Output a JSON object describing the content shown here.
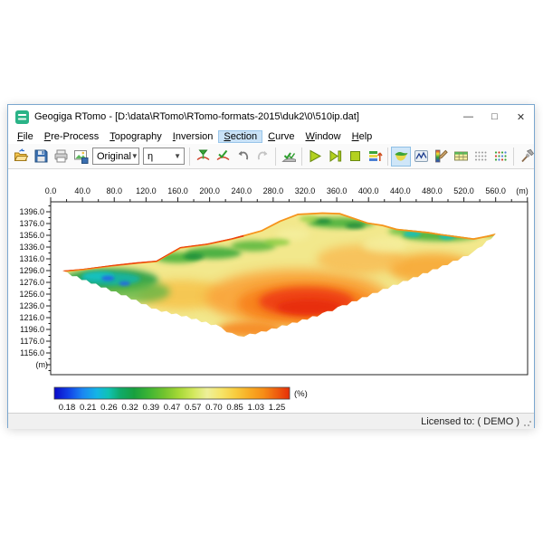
{
  "window": {
    "title": "Geogiga RTomo - [D:\\data\\RTomo\\RTomo-formats-2015\\duk2\\0\\510ip.dat]",
    "minimize_glyph": "—",
    "maximize_glyph": "□",
    "close_glyph": "✕"
  },
  "menu": {
    "items": [
      {
        "label": "File",
        "active": false
      },
      {
        "label": "Pre-Process",
        "active": false
      },
      {
        "label": "Topography",
        "active": false
      },
      {
        "label": "Inversion",
        "active": false
      },
      {
        "label": "Section",
        "active": true
      },
      {
        "label": "Curve",
        "active": false
      },
      {
        "label": "Window",
        "active": false
      },
      {
        "label": "Help",
        "active": false
      }
    ]
  },
  "toolbar": {
    "dropdowns": [
      {
        "value": "Original"
      },
      {
        "value": "η"
      }
    ],
    "icons": [
      "open-file",
      "save",
      "print",
      "export-image",
      "pick-funnel",
      "pick-check",
      "undo",
      "redo",
      "apply-picks",
      "run",
      "step",
      "stop",
      "layers-arrow",
      "section-view",
      "curve-window",
      "color-scale",
      "grid-table",
      "grid-dots",
      "grid-dots-color",
      "tools-hammer"
    ],
    "active_icon": "section-view"
  },
  "statusbar": {
    "license": "Licensed to: ( DEMO )"
  },
  "chart_data": {
    "type": "heatmap",
    "title": "",
    "x_axis": {
      "unit": "(m)",
      "tick_min": 0,
      "tick_max": 600,
      "tick_step": 20,
      "label_step": 40,
      "label_max": 560
    },
    "y_axis": {
      "unit": "(m)",
      "ref": 1396,
      "tick_step": 10,
      "label_step": 20,
      "label_min": 1156,
      "label_max": 1396,
      "labels": [
        1396.0,
        1376.0,
        1356.0,
        1336.0,
        1316.0,
        1296.0,
        1276.0,
        1256.0,
        1236.0,
        1216.0,
        1196.0,
        1176.0,
        1156.0
      ]
    },
    "colorbar": {
      "unit": "(%)",
      "labels": [
        "0.18",
        "0.21",
        "0.26",
        "0.32",
        "0.39",
        "0.47",
        "0.57",
        "0.70",
        "0.85",
        "1.03",
        "1.25"
      ],
      "gradient": [
        [
          0,
          "#0a0ac8"
        ],
        [
          6,
          "#1140e6"
        ],
        [
          12,
          "#1b86f2"
        ],
        [
          18,
          "#14b4e6"
        ],
        [
          23,
          "#10c2b4"
        ],
        [
          28,
          "#10aa6a"
        ],
        [
          34,
          "#18a03e"
        ],
        [
          40,
          "#3cb434"
        ],
        [
          47,
          "#74c42e"
        ],
        [
          53,
          "#a6d836"
        ],
        [
          59,
          "#d2e85c"
        ],
        [
          65,
          "#eef09a"
        ],
        [
          71,
          "#f6e468"
        ],
        [
          77,
          "#f8cc3e"
        ],
        [
          83,
          "#f8ac24"
        ],
        [
          89,
          "#f68c16"
        ],
        [
          95,
          "#ee5a0e"
        ],
        [
          100,
          "#e62e08"
        ]
      ]
    },
    "section": {
      "base_color": "#f2e88c",
      "outline_top": [
        [
          15,
          1296
        ],
        [
          40,
          1299
        ],
        [
          74,
          1305
        ],
        [
          108,
          1310
        ],
        [
          133,
          1313
        ],
        [
          163,
          1336
        ],
        [
          197,
          1342
        ],
        [
          228,
          1351
        ],
        [
          265,
          1365
        ],
        [
          288,
          1381
        ],
        [
          311,
          1393
        ],
        [
          342,
          1395
        ],
        [
          364,
          1394
        ],
        [
          399,
          1378
        ],
        [
          418,
          1374
        ],
        [
          436,
          1367
        ],
        [
          475,
          1362
        ],
        [
          493,
          1358
        ],
        [
          532,
          1351
        ],
        [
          551,
          1356
        ],
        [
          560,
          1359
        ]
      ],
      "outline_bottom": [
        [
          560,
          1359
        ],
        [
          532,
          1328
        ],
        [
          493,
          1305
        ],
        [
          456,
          1285
        ],
        [
          418,
          1265
        ],
        [
          379,
          1244
        ],
        [
          361,
          1234
        ],
        [
          342,
          1224
        ],
        [
          304,
          1208
        ],
        [
          265,
          1193
        ],
        [
          236,
          1185
        ],
        [
          228,
          1190
        ],
        [
          208,
          1204
        ],
        [
          171,
          1219
        ],
        [
          133,
          1231
        ],
        [
          95,
          1254
        ],
        [
          57,
          1274
        ],
        [
          15,
          1296
        ]
      ],
      "features": [
        [
          165,
          1255,
          55,
          25,
          "#f6c44e",
          0.9,
          5
        ],
        [
          310,
          1250,
          115,
          48,
          "#f9a63c",
          0.95,
          6
        ],
        [
          480,
          1300,
          55,
          26,
          "#f8a432",
          0.85,
          5
        ],
        [
          390,
          1315,
          55,
          25,
          "#f9b44a",
          0.7,
          5
        ],
        [
          320,
          1240,
          85,
          35,
          "#f7821e",
          0.95,
          5
        ],
        [
          250,
          1196,
          40,
          14,
          "#f7821e",
          0.85,
          4
        ],
        [
          322,
          1243,
          60,
          24,
          "#ee4012",
          0.95,
          4
        ],
        [
          325,
          1234,
          40,
          13,
          "#e72d0a",
          0.95,
          3
        ],
        [
          305,
          1358,
          22,
          10,
          "#f4ef9f",
          0.85,
          4
        ],
        [
          420,
          1340,
          28,
          13,
          "#f4ef9f",
          0.8,
          4
        ],
        [
          75,
          1280,
          60,
          20,
          "#2fa24c",
          0.95,
          3.5
        ],
        [
          110,
          1260,
          40,
          18,
          "#58b444",
          0.75,
          4
        ],
        [
          75,
          1282,
          38,
          11,
          "#12b4a6",
          0.9,
          2.5
        ],
        [
          60,
          1287,
          20,
          7,
          "#17c2c2",
          0.9,
          2
        ],
        [
          72,
          1283,
          8,
          4.5,
          "#2566e6",
          0.9,
          1.5
        ],
        [
          93,
          1274,
          7,
          4,
          "#2566e6",
          0.85,
          1.5
        ],
        [
          160,
          1318,
          28,
          9,
          "#49b23a",
          0.9,
          3
        ],
        [
          205,
          1326,
          35,
          10,
          "#3aaa3a",
          0.9,
          3
        ],
        [
          180,
          1320,
          13,
          5,
          "#178c3a",
          0.85,
          2
        ],
        [
          255,
          1338,
          28,
          9,
          "#52b63a",
          0.85,
          3
        ],
        [
          285,
          1344,
          16,
          6,
          "#85cc40",
          0.8,
          2.5
        ],
        [
          365,
          1377,
          42,
          9,
          "#46b03a",
          0.9,
          3
        ],
        [
          342,
          1380,
          11,
          4,
          "#128439",
          0.85,
          2
        ],
        [
          383,
          1372,
          12,
          4.5,
          "#128439",
          0.85,
          2
        ],
        [
          325,
          1384,
          12,
          5,
          "#8fd044",
          0.8,
          2.5
        ],
        [
          490,
          1356,
          48,
          10,
          "#46b03a",
          0.9,
          3
        ],
        [
          445,
          1363,
          20,
          7,
          "#5fbe3c",
          0.85,
          3
        ],
        [
          455,
          1358,
          11,
          5,
          "#18c0bc",
          0.9,
          1.8
        ],
        [
          499,
          1354,
          10,
          5,
          "#18c0bc",
          0.9,
          1.8
        ],
        [
          543,
          1362,
          8,
          4,
          "#4cc8c0",
          0.85,
          1.8
        ],
        [
          552,
          1359,
          9,
          5,
          "#46b03a",
          0.8,
          2
        ]
      ],
      "strokes": [
        {
          "points": [
            [
              15,
              1296
            ],
            [
              40,
              1299
            ],
            [
              74,
              1305
            ],
            [
              108,
              1310
            ],
            [
              133,
              1313
            ],
            [
              163,
              1336
            ],
            [
              197,
              1342
            ],
            [
              228,
              1351
            ],
            [
              265,
              1365
            ],
            [
              288,
              1381
            ],
            [
              311,
              1393
            ],
            [
              342,
              1395
            ],
            [
              364,
              1394
            ],
            [
              399,
              1378
            ],
            [
              418,
              1374
            ],
            [
              436,
              1367
            ],
            [
              475,
              1362
            ],
            [
              493,
              1358
            ],
            [
              532,
              1351
            ],
            [
              551,
              1356
            ],
            [
              560,
              1359
            ]
          ],
          "color": "#f6931c",
          "width": 3.5
        },
        {
          "points": [
            [
              15,
              1296
            ],
            [
              74,
              1305
            ],
            [
              133,
              1313
            ],
            [
              163,
              1336
            ],
            [
              197,
              1342
            ],
            [
              228,
              1351
            ],
            [
              242,
              1355
            ]
          ],
          "color": "#e93a0e",
          "width": 2
        }
      ]
    }
  }
}
